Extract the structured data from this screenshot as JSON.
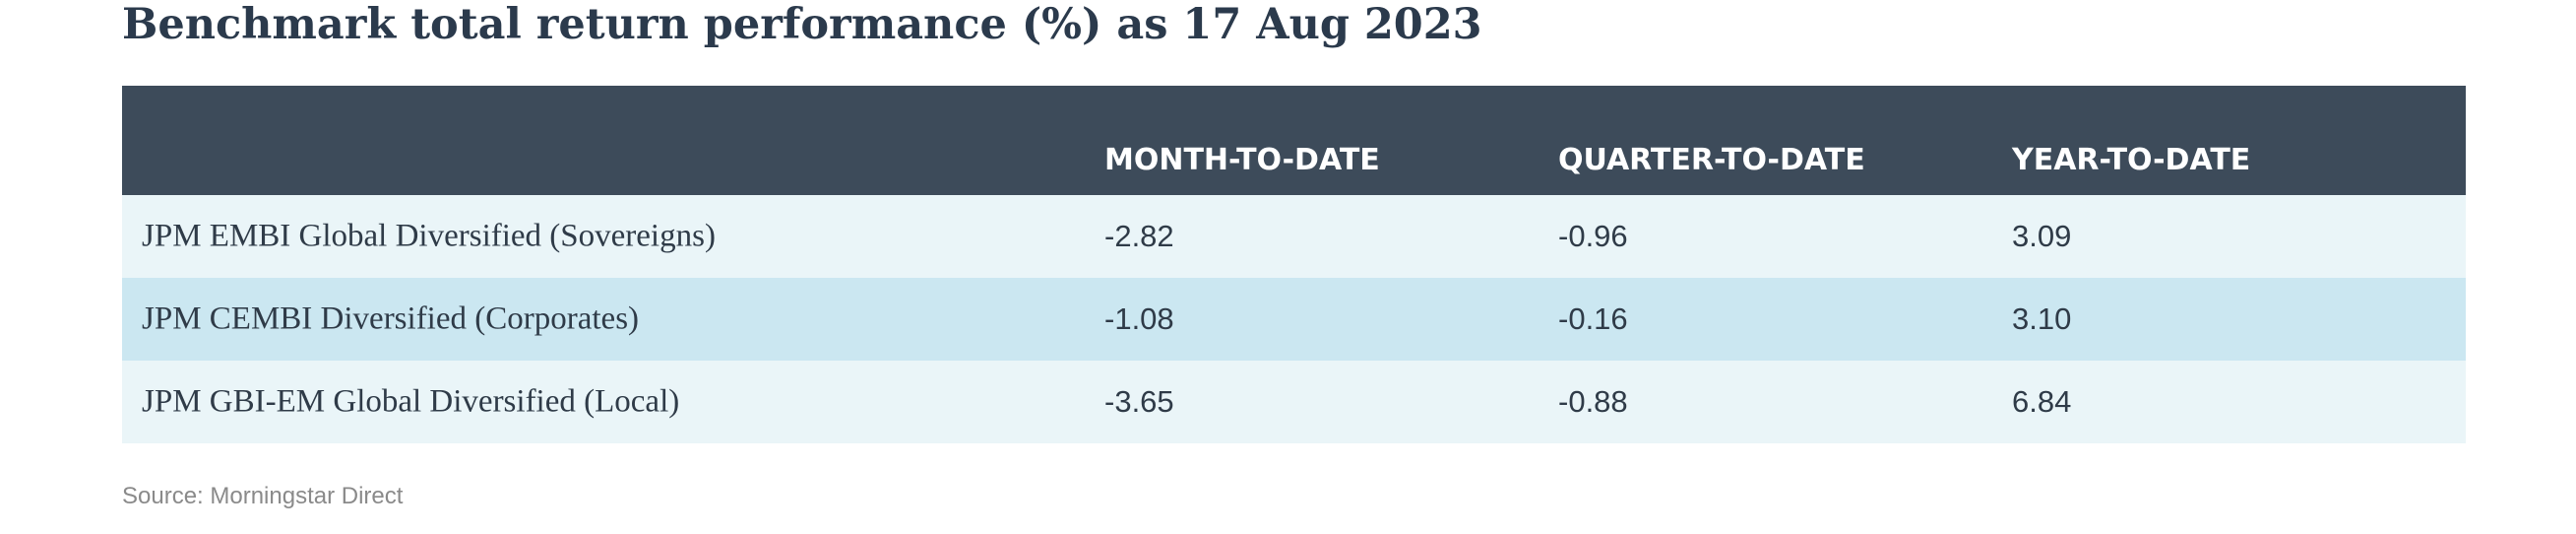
{
  "title": "Benchmark total return performance (%) as 17 Aug 2023",
  "table": {
    "columns": [
      "MONTH-TO-DATE",
      "QUARTER-TO-DATE",
      "YEAR-TO-DATE"
    ],
    "rows": [
      [
        "JPM EMBI Global Diversified (Sovereigns)",
        "-2.82",
        "-0.96",
        "3.09"
      ],
      [
        "JPM CEMBI Diversified (Corporates)",
        "-1.08",
        "-0.16",
        "3.10"
      ],
      [
        "JPM GBI-EM Global Diversified (Local)",
        "-3.65",
        "-0.88",
        "6.84"
      ]
    ]
  },
  "source": "Source: Morningstar Direct"
}
